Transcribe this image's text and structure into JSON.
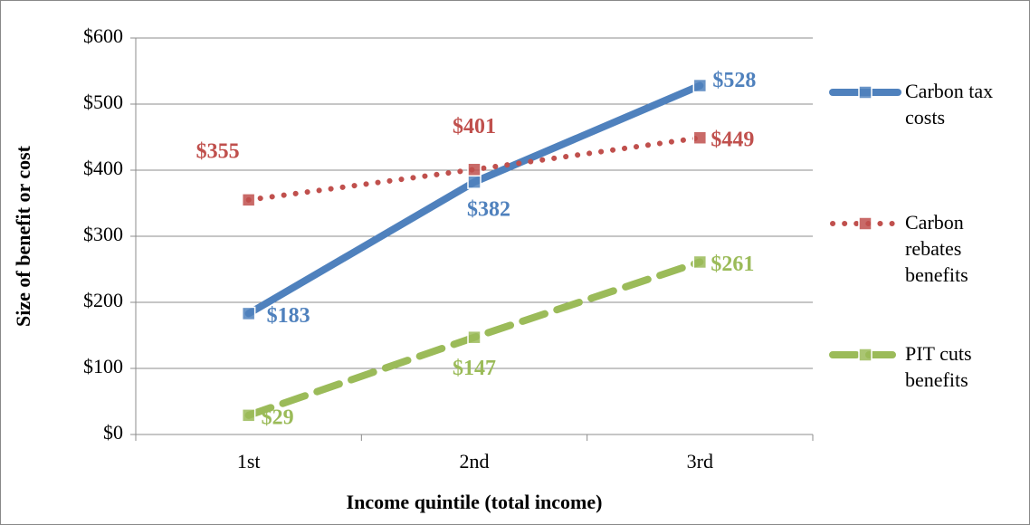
{
  "chart_data": {
    "type": "line",
    "x_label": "Income quintile (total income)",
    "y_label": "Size of benefit or cost",
    "categories": [
      "1st",
      "2nd",
      "3rd"
    ],
    "series": [
      {
        "name": "Carbon tax costs",
        "color": "#4f81bd",
        "style": "solid",
        "values": [
          183,
          382,
          528
        ],
        "value_labels": [
          "$183",
          "$382",
          "$528"
        ]
      },
      {
        "name": "Carbon rebates benefits",
        "color": "#c0504d",
        "style": "dot",
        "values": [
          355,
          401,
          449
        ],
        "value_labels": [
          "$355",
          "$401",
          "$449"
        ]
      },
      {
        "name": "PIT cuts benefits",
        "color": "#9bbb59",
        "style": "dash",
        "values": [
          29,
          147,
          261
        ],
        "value_labels": [
          "$29",
          "$147",
          "$261"
        ]
      }
    ],
    "ylim": [
      0,
      600
    ],
    "yticks": [
      {
        "value": 0,
        "label": "$0"
      },
      {
        "value": 100,
        "label": "$100"
      },
      {
        "value": 200,
        "label": "$200"
      },
      {
        "value": 300,
        "label": "$300"
      },
      {
        "value": 400,
        "label": "$400"
      },
      {
        "value": 500,
        "label": "$500"
      },
      {
        "value": 600,
        "label": "$600"
      }
    ],
    "grid": true,
    "legend": "right"
  }
}
